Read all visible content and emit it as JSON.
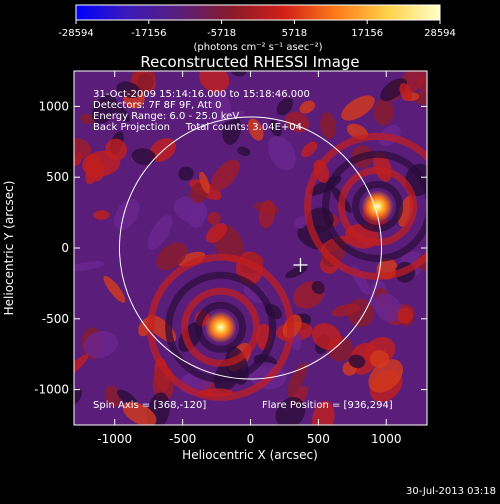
{
  "colorbar": {
    "ticks": [
      "-28594",
      "-17156",
      "-5718",
      "5718",
      "17156",
      "28594"
    ],
    "unit_label": "(photons cm⁻² s⁻¹ asec⁻²)",
    "stops": [
      "#0000ff",
      "#3b1bb8",
      "#5a1e7a",
      "#8a1a2a",
      "#d02018",
      "#ff7a1a",
      "#ffd24a",
      "#ffffc8"
    ]
  },
  "header": {
    "title": "Reconstructed RHESSI Image"
  },
  "info": {
    "line1": "31-Oct-2009 15:14:16.000 to 15:18:46.000",
    "line2": "Detectors: 7F 8F 9F, Att 0",
    "line3": "Energy Range: 6.0 - 25.0 keV",
    "line4": "Back Projection     Total counts: 3.04E+04",
    "spin_axis": "Spin Axis = [368,-120]",
    "flare_position": "Flare Position = [936,294]"
  },
  "timestamp": "30-Jul-2013 03:18",
  "chart_data": {
    "type": "heatmap",
    "title": "Reconstructed RHESSI Image",
    "xlabel": "Heliocentric X (arcsec)",
    "ylabel": "Heliocentric Y (arcsec)",
    "xlim": [
      -1300,
      1300
    ],
    "ylim": [
      -1250,
      1250
    ],
    "x_ticks": [
      -1000,
      -500,
      0,
      500,
      1000
    ],
    "x_tick_labels": [
      "-1000",
      "-500",
      "0",
      "500",
      "1000"
    ],
    "y_ticks": [
      -1000,
      -500,
      0,
      500,
      1000
    ],
    "y_tick_labels": [
      "-1000",
      "-500",
      "0",
      "500",
      "1000"
    ],
    "value_range": [
      -28594,
      28594
    ],
    "sources": [
      {
        "x": 936,
        "y": 294,
        "peak": 28594
      },
      {
        "x": -220,
        "y": -560,
        "peak": 26000
      }
    ],
    "solar_disk": {
      "x": 0,
      "y": 0,
      "radius": 965
    },
    "crosshair": {
      "x": 368,
      "y": -120
    }
  }
}
